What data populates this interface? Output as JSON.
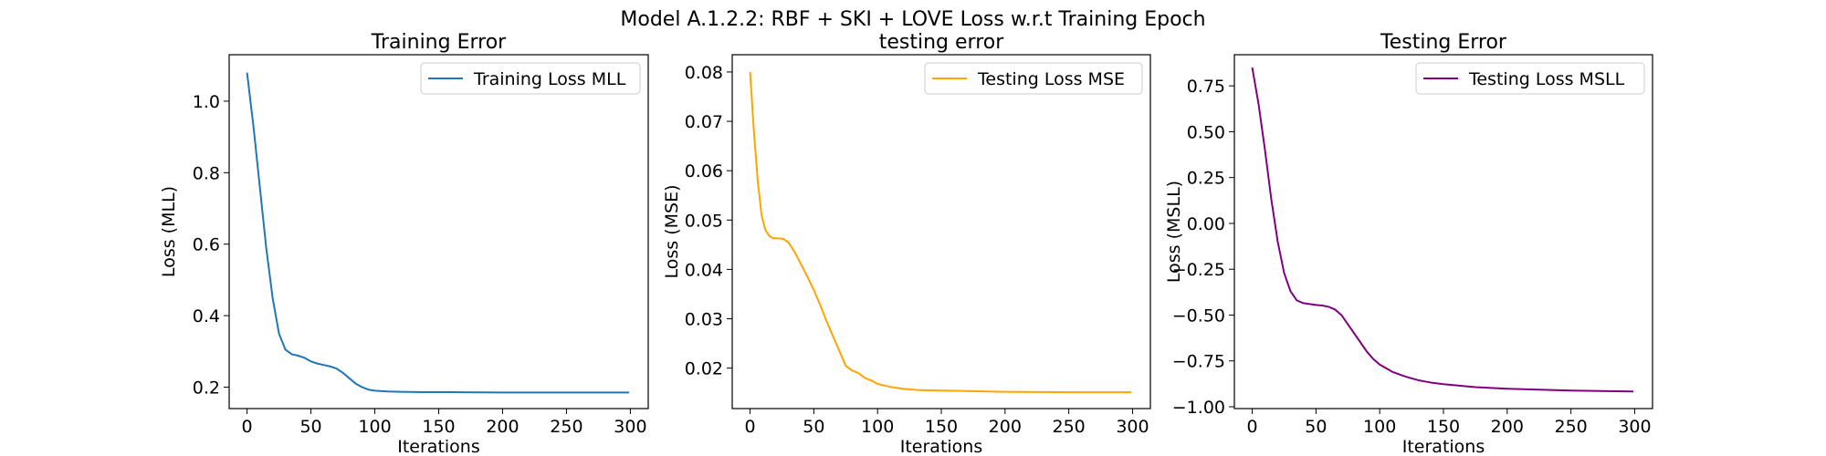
{
  "figure": {
    "suptitle": "Model A.1.2.2: RBF + SKI + LOVE Loss w.r.t Training Epoch"
  },
  "chart_data": [
    {
      "type": "line",
      "title": "Training Error",
      "xlabel": "Iterations",
      "ylabel": "Loss (MLL)",
      "xlim": [
        -14,
        314
      ],
      "ylim": [
        0.14,
        1.13
      ],
      "xticks": [
        0,
        50,
        100,
        150,
        200,
        250,
        300
      ],
      "yticks": [
        0.2,
        0.4,
        0.6,
        0.8,
        1.0
      ],
      "ytick_labels": [
        "0.2",
        "0.4",
        "0.6",
        "0.8",
        "1.0"
      ],
      "legend": "top-right",
      "grid": false,
      "series": [
        {
          "name": "Training Loss MLL",
          "color": "#1f77b4",
          "x": [
            0,
            5,
            10,
            15,
            20,
            25,
            30,
            35,
            40,
            45,
            50,
            55,
            60,
            65,
            70,
            75,
            80,
            85,
            90,
            95,
            100,
            110,
            120,
            140,
            160,
            200,
            250,
            299
          ],
          "y": [
            1.08,
            0.93,
            0.76,
            0.59,
            0.45,
            0.35,
            0.305,
            0.292,
            0.288,
            0.282,
            0.272,
            0.266,
            0.262,
            0.258,
            0.252,
            0.24,
            0.225,
            0.21,
            0.2,
            0.193,
            0.19,
            0.188,
            0.187,
            0.186,
            0.186,
            0.185,
            0.185,
            0.185
          ]
        }
      ]
    },
    {
      "type": "line",
      "title": "testing error",
      "xlabel": "Iterations",
      "ylabel": "Loss (MSE)",
      "xlim": [
        -14,
        314
      ],
      "ylim": [
        0.0118,
        0.0835
      ],
      "xticks": [
        0,
        50,
        100,
        150,
        200,
        250,
        300
      ],
      "yticks": [
        0.02,
        0.03,
        0.04,
        0.05,
        0.06,
        0.07,
        0.08
      ],
      "ytick_labels": [
        "0.02",
        "0.03",
        "0.04",
        "0.05",
        "0.06",
        "0.07",
        "0.08"
      ],
      "legend": "top-right",
      "grid": false,
      "series": [
        {
          "name": "Testing Loss MSE",
          "color": "#ffa500",
          "x": [
            0,
            3,
            6,
            9,
            12,
            15,
            18,
            22,
            26,
            30,
            35,
            40,
            45,
            50,
            55,
            60,
            65,
            70,
            75,
            80,
            85,
            90,
            95,
            100,
            105,
            110,
            115,
            120,
            130,
            140,
            160,
            200,
            250,
            299
          ],
          "y": [
            0.08,
            0.068,
            0.058,
            0.051,
            0.048,
            0.0468,
            0.0463,
            0.0463,
            0.0462,
            0.0455,
            0.0435,
            0.041,
            0.0385,
            0.0358,
            0.0328,
            0.0295,
            0.0265,
            0.0235,
            0.0205,
            0.0195,
            0.019,
            0.018,
            0.0175,
            0.0168,
            0.0165,
            0.0162,
            0.016,
            0.0158,
            0.0156,
            0.0155,
            0.0154,
            0.0152,
            0.0151,
            0.0151
          ]
        }
      ]
    },
    {
      "type": "line",
      "title": "Testing Error",
      "xlabel": "Iterations",
      "ylabel": "Loss (MSLL)",
      "xlim": [
        -14,
        314
      ],
      "ylim": [
        -1.01,
        0.92
      ],
      "xticks": [
        0,
        50,
        100,
        150,
        200,
        250,
        300
      ],
      "yticks": [
        -1.0,
        -0.75,
        -0.5,
        -0.25,
        0.0,
        0.25,
        0.5,
        0.75
      ],
      "ytick_labels": [
        "−1.00",
        "−0.75",
        "−0.50",
        "−0.25",
        "0.00",
        "0.25",
        "0.50",
        "0.75"
      ],
      "legend": "top-right",
      "grid": false,
      "series": [
        {
          "name": "Testing Loss MSLL",
          "color": "#800080",
          "x": [
            0,
            5,
            10,
            15,
            20,
            25,
            30,
            35,
            40,
            45,
            50,
            55,
            60,
            65,
            70,
            75,
            80,
            85,
            90,
            95,
            100,
            110,
            120,
            130,
            140,
            150,
            175,
            200,
            250,
            299
          ],
          "y": [
            0.85,
            0.65,
            0.4,
            0.13,
            -0.1,
            -0.27,
            -0.37,
            -0.42,
            -0.435,
            -0.44,
            -0.445,
            -0.448,
            -0.455,
            -0.47,
            -0.5,
            -0.55,
            -0.6,
            -0.65,
            -0.7,
            -0.74,
            -0.77,
            -0.81,
            -0.835,
            -0.855,
            -0.868,
            -0.877,
            -0.893,
            -0.902,
            -0.912,
            -0.917
          ]
        }
      ]
    }
  ]
}
